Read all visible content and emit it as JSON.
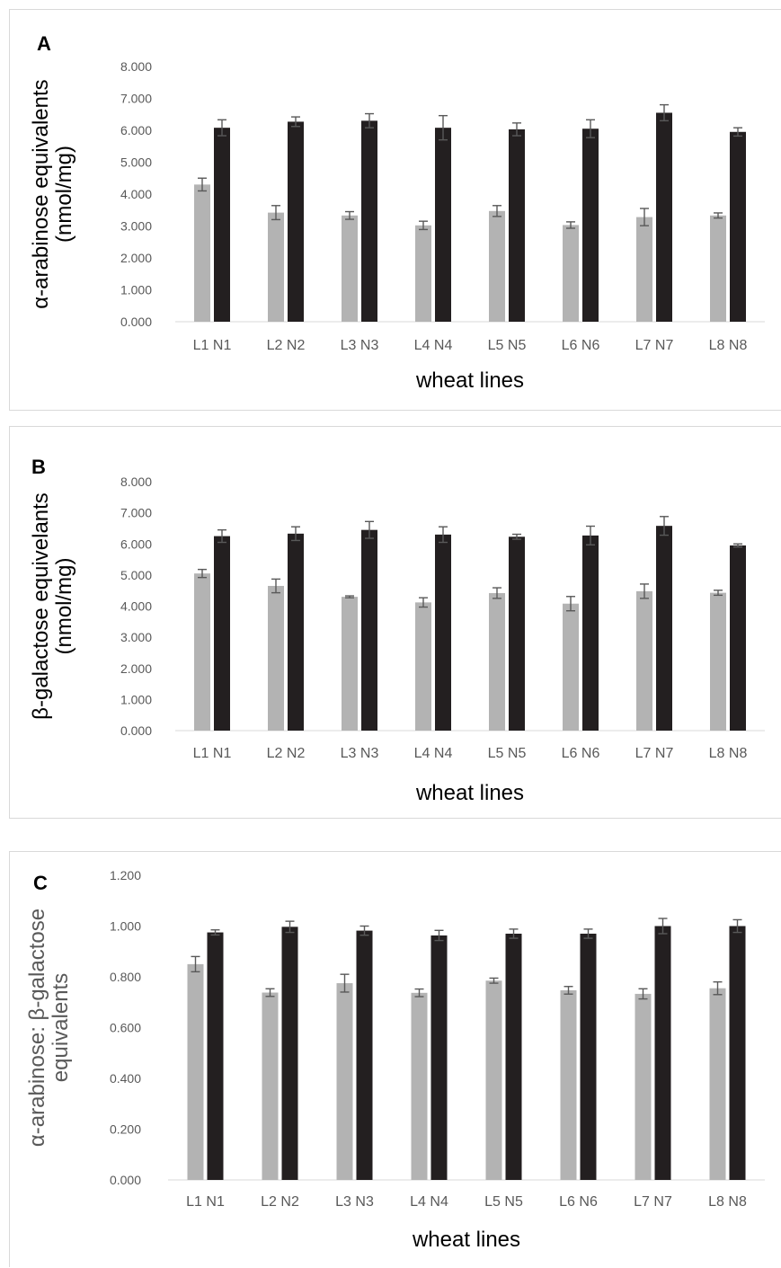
{
  "chart_data": [
    {
      "panel": "A",
      "type": "bar",
      "ylabel_lines": [
        "α-arabinose equivalents",
        "(nmol/mg)"
      ],
      "xlabel": "wheat lines",
      "ylim": [
        0,
        8
      ],
      "yticks": [
        "0.000",
        "1.000",
        "2.000",
        "3.000",
        "4.000",
        "5.000",
        "6.000",
        "7.000",
        "8.000"
      ],
      "categories": [
        "L1 N1",
        "L2 N2",
        "L3 N3",
        "L4 N4",
        "L5 N5",
        "L6 N6",
        "L7 N7",
        "L8 N8"
      ],
      "series": [
        {
          "values": [
            4.3,
            3.42,
            3.33,
            3.02,
            3.47,
            3.03,
            3.28,
            3.33
          ],
          "errors": [
            0.2,
            0.22,
            0.12,
            0.13,
            0.17,
            0.1,
            0.27,
            0.08
          ],
          "color": "#b3b3b3"
        },
        {
          "values": [
            6.08,
            6.27,
            6.3,
            6.08,
            6.03,
            6.05,
            6.55,
            5.95
          ],
          "errors": [
            0.25,
            0.15,
            0.22,
            0.38,
            0.2,
            0.28,
            0.25,
            0.13
          ],
          "color": "#231f20"
        }
      ],
      "grid": false
    },
    {
      "panel": "B",
      "type": "bar",
      "ylabel_lines": [
        "β-galactose equivelants",
        "(nmol/mg)"
      ],
      "xlabel": "wheat lines",
      "ylim": [
        0,
        8
      ],
      "yticks": [
        "0.000",
        "1.000",
        "2.000",
        "3.000",
        "4.000",
        "5.000",
        "6.000",
        "7.000",
        "8.000"
      ],
      "categories": [
        "L1 N1",
        "L2 N2",
        "L3 N3",
        "L4 N4",
        "L5 N5",
        "L6 N6",
        "L7 N7",
        "L8 N8"
      ],
      "series": [
        {
          "values": [
            5.05,
            4.65,
            4.3,
            4.12,
            4.42,
            4.08,
            4.48,
            4.43
          ],
          "errors": [
            0.13,
            0.22,
            0.03,
            0.15,
            0.17,
            0.23,
            0.23,
            0.08
          ],
          "color": "#b3b3b3"
        },
        {
          "values": [
            6.25,
            6.33,
            6.45,
            6.3,
            6.23,
            6.27,
            6.58,
            5.95
          ],
          "errors": [
            0.2,
            0.22,
            0.27,
            0.25,
            0.08,
            0.3,
            0.3,
            0.05
          ],
          "color": "#231f20"
        }
      ],
      "grid": false
    },
    {
      "panel": "C",
      "type": "bar",
      "ylabel_lines": [
        "α-arabinose:  β-galactose",
        "equivalents"
      ],
      "xlabel": "wheat lines",
      "ylim": [
        0,
        1.2
      ],
      "yticks": [
        "0.000",
        "0.200",
        "0.400",
        "0.600",
        "0.800",
        "1.000",
        "1.200"
      ],
      "categories": [
        "L1 N1",
        "L2 N2",
        "L3 N3",
        "L4 N4",
        "L5 N5",
        "L6 N6",
        "L7 N7",
        "L8 N8"
      ],
      "series": [
        {
          "values": [
            0.85,
            0.738,
            0.775,
            0.737,
            0.785,
            0.747,
            0.733,
            0.755
          ],
          "errors": [
            0.03,
            0.015,
            0.035,
            0.015,
            0.01,
            0.015,
            0.02,
            0.025
          ],
          "color": "#b3b3b3"
        },
        {
          "values": [
            0.975,
            0.997,
            0.982,
            0.963,
            0.97,
            0.97,
            1.0,
            1.0
          ],
          "errors": [
            0.01,
            0.022,
            0.018,
            0.02,
            0.018,
            0.018,
            0.03,
            0.025
          ],
          "color": "#231f20"
        }
      ],
      "grid": false
    }
  ]
}
